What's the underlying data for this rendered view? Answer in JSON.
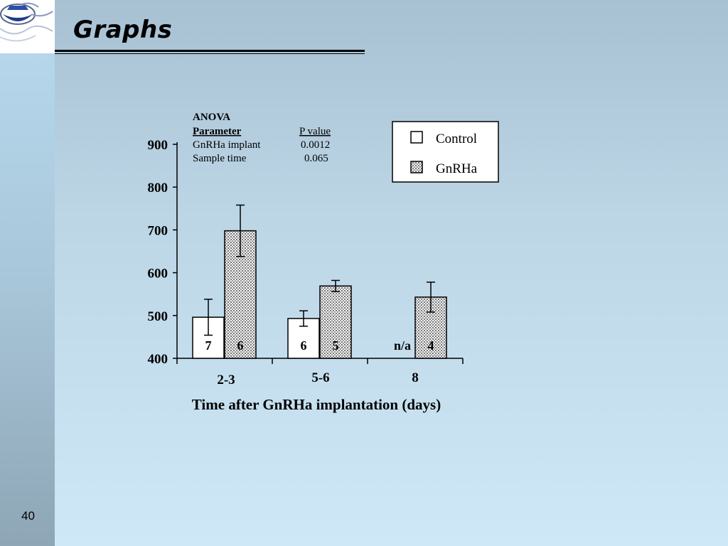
{
  "slide": {
    "title": "Graphs",
    "page_number": "40"
  },
  "anova": {
    "heading": "ANOVA",
    "col_parameter": "Parameter",
    "col_pvalue": "P value",
    "rows": [
      {
        "parameter": "GnRHa implant",
        "p": "0.0012"
      },
      {
        "parameter": "Sample time",
        "p": "0.065"
      }
    ]
  },
  "chart_data": {
    "type": "bar",
    "categories": [
      "2-3",
      "5-6",
      "8"
    ],
    "xlabel": "Time after GnRHa implantation (days)",
    "ylabel": "",
    "ylim": [
      400,
      900
    ],
    "yticks": [
      400,
      500,
      600,
      700,
      800,
      900
    ],
    "legend_position": "top-right",
    "series": [
      {
        "name": "Control",
        "color": "#ffffff",
        "values": [
          496,
          493,
          null
        ],
        "errors": [
          42,
          18,
          null
        ],
        "n_labels": [
          "7",
          "6",
          "n/a"
        ]
      },
      {
        "name": "GnRHa",
        "color": "#b8b8b8",
        "values": [
          698,
          569,
          543
        ],
        "errors": [
          60,
          13,
          35
        ],
        "n_labels": [
          "6",
          "5",
          "4"
        ]
      }
    ]
  }
}
